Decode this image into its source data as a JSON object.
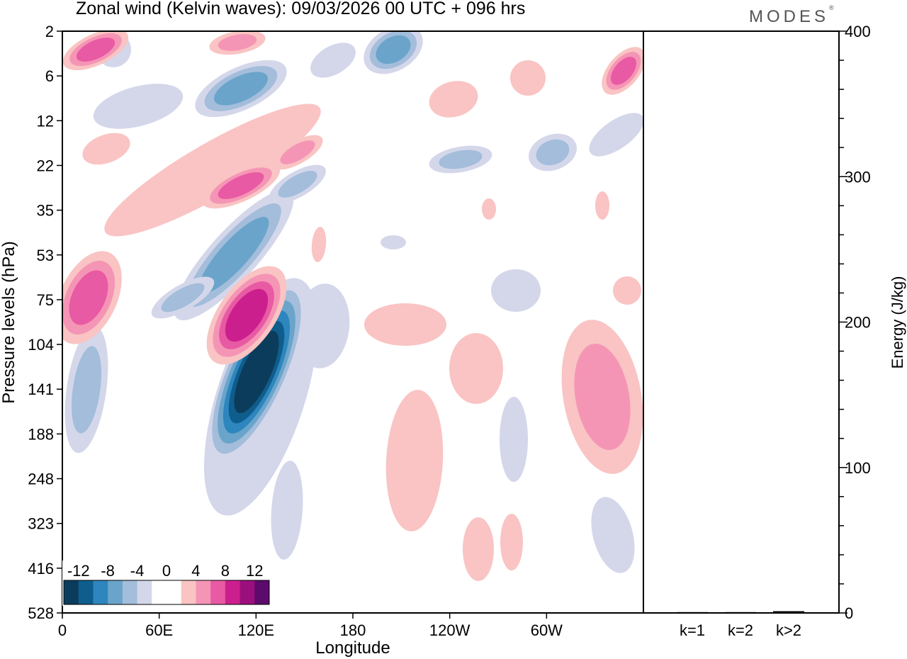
{
  "title": "Zonal wind (Kelvin waves):  09/03/2026  00 UTC  + 096 hrs",
  "brand": "MODES",
  "brand_mark": "®",
  "chart_data": [
    {
      "type": "heatmap",
      "xlabel": "Longitude",
      "ylabel": "Pressure levels (hPa)",
      "x_ticks": [
        {
          "label": "0",
          "lon": 0
        },
        {
          "label": "60E",
          "lon": 60
        },
        {
          "label": "120E",
          "lon": 120
        },
        {
          "label": "180",
          "lon": 180
        },
        {
          "label": "120W",
          "lon": 240
        },
        {
          "label": "60W",
          "lon": 300
        }
      ],
      "xlim": [
        0,
        360
      ],
      "y_ticks": [
        "2",
        "6",
        "12",
        "22",
        "35",
        "53",
        "75",
        "104",
        "141",
        "188",
        "248",
        "323",
        "416",
        "528"
      ],
      "y_scale": "pressure levels, top 2 hPa to bottom 528 hPa",
      "colorbar": {
        "labels": [
          "-12",
          "-8",
          "-4",
          "0",
          "4",
          "8",
          "12"
        ],
        "colors": [
          "#0c3c5c",
          "#0f5d8c",
          "#2d86bd",
          "#6aa4cb",
          "#a3bddb",
          "#d4d7ea",
          "#ffffff",
          "#ffffff",
          "#f9c4c3",
          "#f595b5",
          "#e85aa3",
          "#cc1f8e",
          "#9b0f7d",
          "#5c0a6b"
        ]
      },
      "features": [
        {
          "sign": "negative",
          "lon": 118,
          "level_hpa": 141,
          "value": -13
        },
        {
          "sign": "positive",
          "lon": 108,
          "level_hpa": 85,
          "value": 10
        },
        {
          "sign": "negative",
          "lon": 95,
          "level_hpa": 70,
          "value": -6
        },
        {
          "sign": "positive",
          "lon": 115,
          "level_hpa": 25,
          "value": 7
        },
        {
          "sign": "positive",
          "lon": 16,
          "level_hpa": 78,
          "value": 8
        },
        {
          "sign": "positive",
          "lon": 15,
          "level_hpa": 2.5,
          "value": 7
        },
        {
          "sign": "negative",
          "lon": 210,
          "level_hpa": 3,
          "value": -5
        },
        {
          "sign": "positive",
          "lon": 230,
          "level_hpa": 160,
          "value": 3
        },
        {
          "sign": "positive",
          "lon": 345,
          "level_hpa": 150,
          "value": 3
        },
        {
          "sign": "positive",
          "lon": 355,
          "level_hpa": 5,
          "value": 6
        },
        {
          "sign": "negative",
          "lon": 270,
          "level_hpa": 200,
          "value": -2
        },
        {
          "sign": "positive",
          "lon": 260,
          "level_hpa": 390,
          "value": 2
        }
      ]
    },
    {
      "type": "bar",
      "categories": [
        "k=1",
        "k=2",
        "k>2"
      ],
      "values": [
        0.5,
        0.4,
        1.2
      ],
      "ylabel": "Energy (J/kg)",
      "ylim": [
        0,
        400
      ],
      "y_ticks": [
        "0",
        "100",
        "200",
        "300",
        "400"
      ]
    }
  ]
}
